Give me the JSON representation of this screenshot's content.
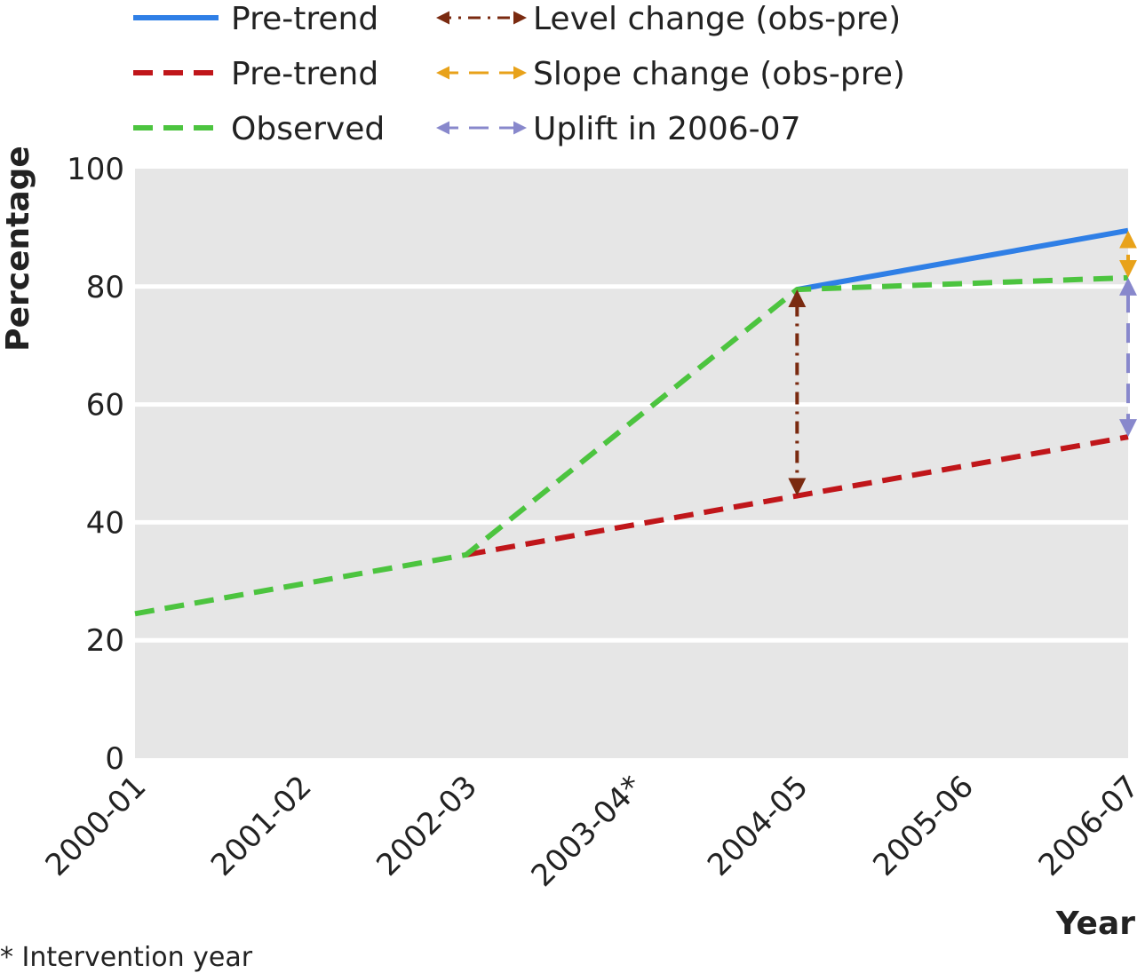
{
  "chart_data": {
    "type": "line",
    "xlabel": "Year",
    "ylabel": "Percentage",
    "ylim": [
      0,
      100
    ],
    "yticks": [
      0,
      20,
      40,
      60,
      80,
      100
    ],
    "categories": [
      "2000-01",
      "2001-02",
      "2002-03",
      "2003-04*",
      "2004-05",
      "2005-06",
      "2006-07"
    ],
    "grid": true,
    "legend_position": "top",
    "series": [
      {
        "name": "Pre-trend",
        "style": "solid",
        "color": "#2f7fe6",
        "points": [
          [
            "2004-05",
            79.5
          ],
          [
            "2006-07",
            89.5
          ]
        ]
      },
      {
        "name": "Pre-trend",
        "style": "dashed",
        "color": "#c0161a",
        "points": [
          [
            "2002-03",
            34.5
          ],
          [
            "2004-05",
            44.5
          ],
          [
            "2006-07",
            54.5
          ]
        ]
      },
      {
        "name": "Observed",
        "style": "dashed",
        "color": "#4cc43f",
        "points": [
          [
            "2000-01",
            24.5
          ],
          [
            "2001-02",
            29.5
          ],
          [
            "2002-03",
            34.5
          ],
          [
            "2003-04*",
            57
          ],
          [
            "2004-05",
            79.5
          ],
          [
            "2005-06",
            80.5
          ],
          [
            "2006-07",
            81.5
          ]
        ]
      }
    ],
    "annotations": [
      {
        "name": "Level change (obs-pre)",
        "style": "dashdot",
        "color": "#7a2a10",
        "x": "2004-05",
        "from": 44.5,
        "to": 79.5
      },
      {
        "name": "Slope change (obs-pre)",
        "style": "dashed",
        "color": "#e8a21a",
        "x": "2006-07",
        "from": 81.5,
        "to": 89.5
      },
      {
        "name": "Uplift in 2006-07",
        "style": "dashed",
        "color": "#8888cc",
        "x": "2006-07",
        "from": 54.5,
        "to": 81.5
      }
    ],
    "footnote": "* Intervention year"
  }
}
